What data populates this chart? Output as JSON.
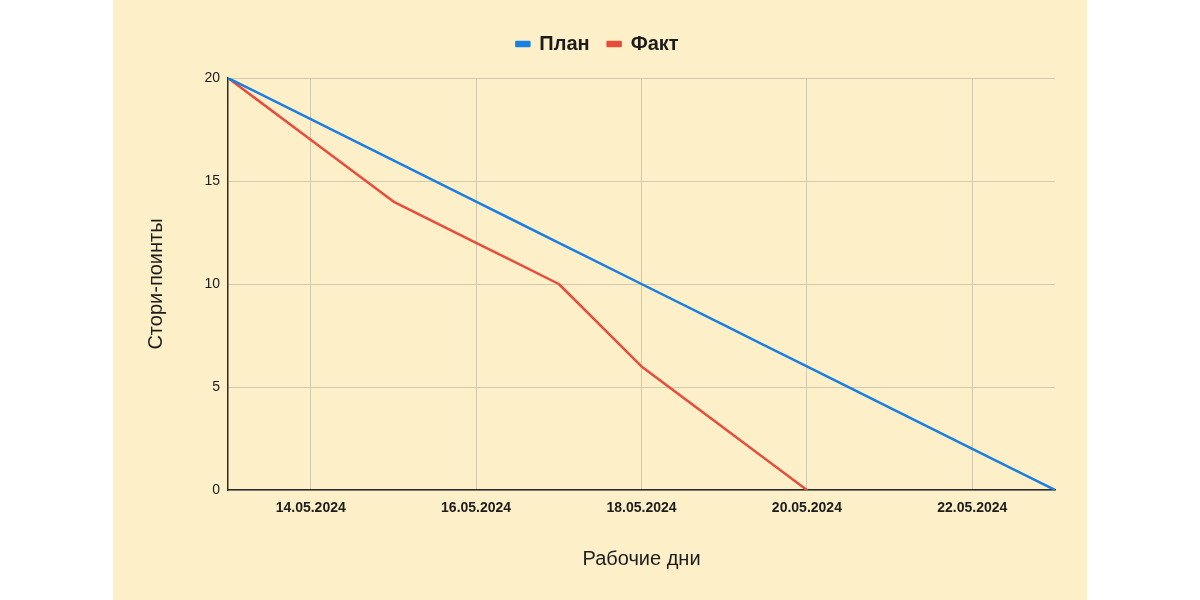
{
  "chart_data": {
    "type": "line",
    "xlabel": "Рабочие дни",
    "ylabel": "Стори-поинты",
    "xlim": [
      "2024-05-13",
      "2024-05-23"
    ],
    "xticks": [
      {
        "value": "2024-05-14",
        "label": "14.05.2024"
      },
      {
        "value": "2024-05-16",
        "label": "16.05.2024"
      },
      {
        "value": "2024-05-18",
        "label": "18.05.2024"
      },
      {
        "value": "2024-05-20",
        "label": "20.05.2024"
      },
      {
        "value": "2024-05-22",
        "label": "22.05.2024"
      }
    ],
    "ylim": [
      0,
      20
    ],
    "yticks": [
      0,
      5,
      10,
      15,
      20
    ],
    "grid": true,
    "legend": "top",
    "marker": "none",
    "line_style": "solid",
    "series": [
      {
        "name": "План",
        "color": "#1a7fe0",
        "x": [
          "2024-05-13",
          "2024-05-14",
          "2024-05-15",
          "2024-05-16",
          "2024-05-17",
          "2024-05-18",
          "2024-05-19",
          "2024-05-20",
          "2024-05-21",
          "2024-05-22",
          "2024-05-23"
        ],
        "values": [
          20,
          18,
          16,
          14,
          12,
          10,
          8,
          6,
          4,
          2,
          0
        ]
      },
      {
        "name": "Факт",
        "color": "#e84c3d",
        "x": [
          "2024-05-13",
          "2024-05-14",
          "2024-05-15",
          "2024-05-16",
          "2024-05-17",
          "2024-05-18",
          "2024-05-19",
          "2024-05-20"
        ],
        "values": [
          20,
          17,
          14,
          12,
          10,
          6,
          3,
          0
        ]
      }
    ]
  }
}
